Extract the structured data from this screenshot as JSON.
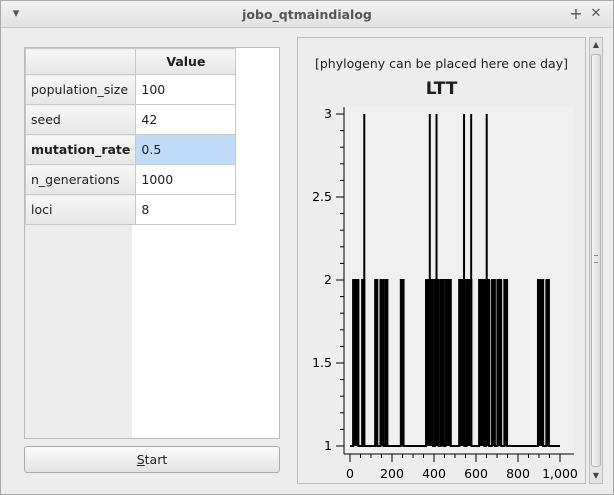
{
  "window": {
    "title": "jobo_qtmaindialog",
    "menu_icon": "chevron-down-icon",
    "maximize_icon": "plus-icon",
    "close_icon": "close-icon"
  },
  "table": {
    "header": "Value",
    "rows": [
      {
        "name": "population_size",
        "value": "100",
        "selected": false
      },
      {
        "name": "seed",
        "value": "42",
        "selected": false
      },
      {
        "name": "mutation_rate",
        "value": "0.5",
        "selected": true
      },
      {
        "name": "n_generations",
        "value": "1000",
        "selected": false
      },
      {
        "name": "loci",
        "value": "8",
        "selected": false
      }
    ]
  },
  "start_button": {
    "mnemonic": "S",
    "rest": "tart"
  },
  "phylogeny_label": "[phylogeny can be placed here one day]",
  "colors": {
    "selection": "#c1dcf8",
    "plot_line": "#000000"
  },
  "chart_data": {
    "type": "line",
    "title": "LTT",
    "xlabel": "",
    "ylabel": "",
    "xlim": [
      0,
      1000
    ],
    "ylim": [
      1,
      3
    ],
    "x_ticks": [
      "0",
      "200",
      "400",
      "600",
      "800",
      "1,000"
    ],
    "y_ticks": [
      "1",
      "1.5",
      "2",
      "2.5",
      "3"
    ],
    "grid": false,
    "series": [
      {
        "segments_y2": [
          [
            15,
            40
          ],
          [
            58,
            68
          ],
          [
            120,
            130
          ],
          [
            145,
            160
          ],
          [
            170,
            178
          ],
          [
            242,
            255
          ],
          [
            362,
            395
          ],
          [
            405,
            422
          ],
          [
            432,
            445
          ],
          [
            455,
            480
          ],
          [
            520,
            545
          ],
          [
            555,
            578
          ],
          [
            615,
            640
          ],
          [
            648,
            662
          ],
          [
            675,
            690
          ],
          [
            702,
            720
          ],
          [
            735,
            748
          ],
          [
            895,
            920
          ],
          [
            935,
            947
          ]
        ],
        "spikes_y3": [
          68,
          380,
          412,
          543,
          577,
          651
        ]
      }
    ]
  }
}
